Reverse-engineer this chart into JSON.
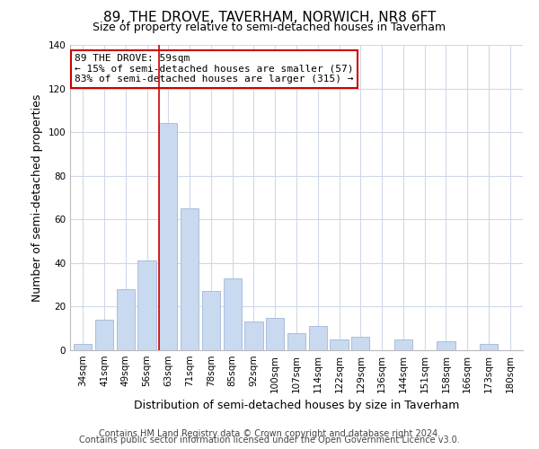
{
  "title": "89, THE DROVE, TAVERHAM, NORWICH, NR8 6FT",
  "subtitle": "Size of property relative to semi-detached houses in Taverham",
  "xlabel": "Distribution of semi-detached houses by size in Taverham",
  "ylabel": "Number of semi-detached properties",
  "categories": [
    "34sqm",
    "41sqm",
    "49sqm",
    "56sqm",
    "63sqm",
    "71sqm",
    "78sqm",
    "85sqm",
    "92sqm",
    "100sqm",
    "107sqm",
    "114sqm",
    "122sqm",
    "129sqm",
    "136sqm",
    "144sqm",
    "151sqm",
    "158sqm",
    "166sqm",
    "173sqm",
    "180sqm"
  ],
  "values": [
    3,
    14,
    28,
    41,
    104,
    65,
    27,
    33,
    13,
    15,
    8,
    11,
    5,
    6,
    0,
    5,
    0,
    4,
    0,
    3,
    0
  ],
  "bar_color": "#c8d9f0",
  "bar_edge_color": "#a0b8d8",
  "highlight_line_color": "#cc0000",
  "highlight_line_bar_index": 4,
  "annotation_line1": "89 THE DROVE: 59sqm",
  "annotation_line2": "← 15% of semi-detached houses are smaller (57)",
  "annotation_line3": "83% of semi-detached houses are larger (315) →",
  "annotation_box_edge_color": "#cc0000",
  "ylim": [
    0,
    140
  ],
  "yticks": [
    0,
    20,
    40,
    60,
    80,
    100,
    120,
    140
  ],
  "grid_color": "#d0d8e8",
  "background_color": "#ffffff",
  "footer_line1": "Contains HM Land Registry data © Crown copyright and database right 2024.",
  "footer_line2": "Contains public sector information licensed under the Open Government Licence v3.0.",
  "title_fontsize": 11,
  "subtitle_fontsize": 9,
  "axis_label_fontsize": 9,
  "tick_fontsize": 7.5,
  "footer_fontsize": 7,
  "annotation_fontsize": 8
}
